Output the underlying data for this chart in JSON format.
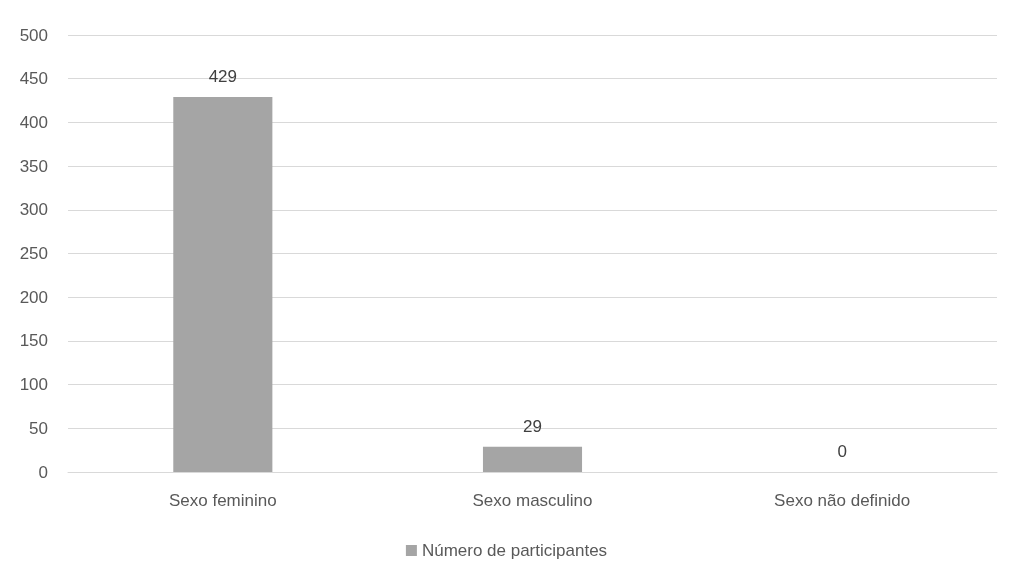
{
  "chart_data": {
    "type": "bar",
    "categories": [
      "Sexo feminino",
      "Sexo masculino",
      "Sexo não definido"
    ],
    "series": [
      {
        "name": "Número de participantes",
        "color": "#a5a5a5",
        "values": [
          429,
          29,
          0
        ]
      }
    ],
    "ylim": [
      0,
      500
    ],
    "yticks": [
      0,
      50,
      100,
      150,
      200,
      250,
      300,
      350,
      400,
      450,
      500
    ],
    "grid": "y",
    "legend": "bottom",
    "data_labels": true
  }
}
